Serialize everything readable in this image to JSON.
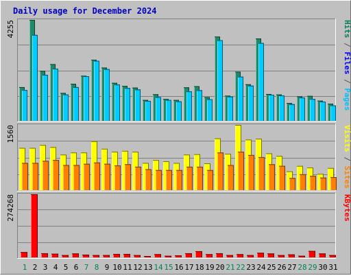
{
  "chart_data": {
    "type": "bar",
    "title": "Daily usage for December 2024",
    "categories": [
      "1",
      "2",
      "3",
      "4",
      "5",
      "6",
      "7",
      "8",
      "9",
      "10",
      "11",
      "12",
      "13",
      "14",
      "15",
      "16",
      "17",
      "18",
      "19",
      "20",
      "21",
      "22",
      "23",
      "24",
      "25",
      "26",
      "27",
      "28",
      "29",
      "30",
      "31"
    ],
    "weekend_days": [
      1,
      7,
      8,
      14,
      15,
      21,
      22,
      28,
      29
    ],
    "grid": true,
    "panels": [
      {
        "id": "pages-files-hits",
        "max_label": "4255",
        "ylim": [
          0,
          4255
        ],
        "legend": [
          {
            "text": "Pages",
            "color": "#00c0ff"
          },
          {
            "text": " / ",
            "color": "#555555"
          },
          {
            "text": "Files",
            "color": "#0000ff"
          },
          {
            "text": " / ",
            "color": "#555555"
          },
          {
            "text": "Hits",
            "color": "#00805c"
          }
        ],
        "series": [
          {
            "name": "Hits",
            "color": "#1e8a6a",
            "values": [
              1420,
              4255,
              2105,
              2390,
              1175,
              1560,
              1900,
              2575,
              2245,
              1600,
              1470,
              1400,
              880,
              1120,
              920,
              880,
              1410,
              1460,
              1000,
              3550,
              1060,
              2070,
              1540,
              3470,
              1130,
              1110,
              750,
              1030,
              1050,
              850,
              720
            ]
          },
          {
            "name": "Files",
            "color": "#0000ff",
            "values": [
              1300,
              3620,
              1940,
              2200,
              1110,
              1420,
              1880,
              2530,
              2180,
              1530,
              1380,
              1320,
              840,
              1000,
              880,
              820,
              1240,
              1290,
              910,
              3400,
              1020,
              1860,
              1480,
              3280,
              1100,
              1070,
              700,
              980,
              920,
              810,
              650
            ]
          },
          {
            "name": "Pages",
            "color": "#00ccff",
            "values": [
              1300,
              3620,
              1940,
              2200,
              1110,
              1420,
              1880,
              2530,
              2180,
              1530,
              1380,
              1320,
              840,
              1000,
              880,
              820,
              1240,
              1290,
              910,
              3400,
              1020,
              1860,
              1480,
              3280,
              1100,
              1070,
              700,
              980,
              920,
              810,
              650
            ]
          }
        ]
      },
      {
        "id": "sites-visits",
        "max_label": "1560",
        "ylim": [
          0,
          1560
        ],
        "legend": [
          {
            "text": "Sites",
            "color": "#ff8000"
          },
          {
            "text": " / ",
            "color": "#555555"
          },
          {
            "text": "Visits",
            "color": "#ffff00"
          }
        ],
        "series": [
          {
            "name": "Visits",
            "color": "#ffff00",
            "values": [
              1010,
              1010,
              1080,
              1030,
              850,
              900,
              900,
              1170,
              990,
              920,
              940,
              920,
              650,
              720,
              690,
              650,
              850,
              860,
              640,
              1240,
              870,
              1560,
              1210,
              1230,
              880,
              820,
              450,
              580,
              540,
              390,
              530
            ]
          },
          {
            "name": "Sites",
            "color": "#ff8000",
            "values": [
              650,
              650,
              700,
              720,
              600,
              600,
              630,
              660,
              630,
              590,
              620,
              560,
              500,
              480,
              480,
              480,
              560,
              560,
              480,
              900,
              600,
              920,
              840,
              790,
              620,
              580,
              290,
              380,
              340,
              300,
              310
            ]
          }
        ]
      },
      {
        "id": "kbytes",
        "max_label": "274268",
        "ylim": [
          0,
          274268
        ],
        "legend": [
          {
            "text": "KBytes",
            "color": "#ff0000"
          }
        ],
        "series": [
          {
            "name": "KBytes",
            "color": "#ff0000",
            "values": [
              23000,
              274268,
              18000,
              16000,
              10000,
              17000,
              12000,
              10000,
              10000,
              15000,
              15000,
              10000,
              6000,
              14000,
              7000,
              9000,
              18000,
              27000,
              14000,
              18000,
              10000,
              14000,
              10000,
              20000,
              17000,
              10000,
              13000,
              7000,
              28000,
              17000,
              10000
            ]
          }
        ]
      }
    ]
  }
}
